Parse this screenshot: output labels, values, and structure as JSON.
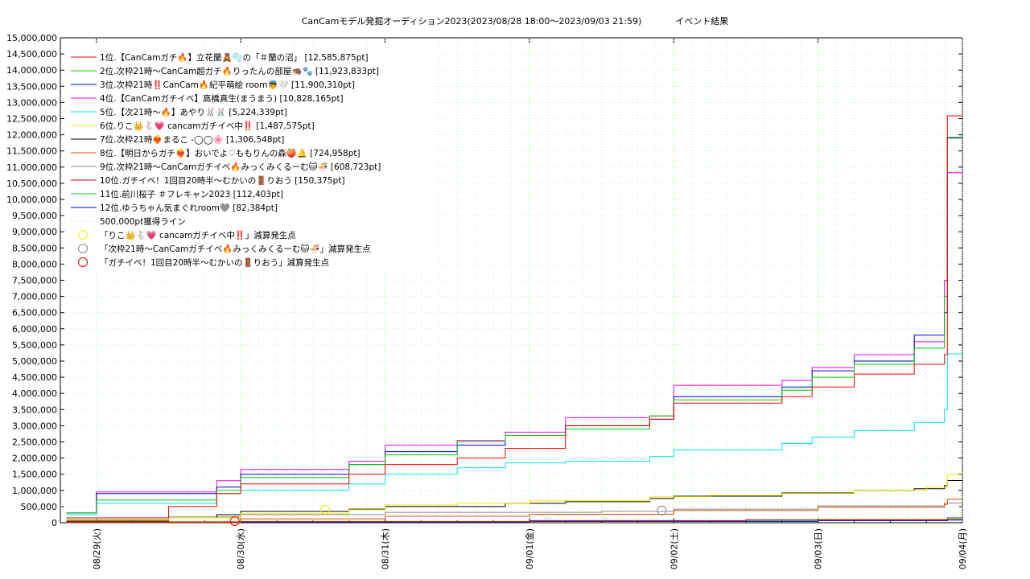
{
  "page_title": "CanCamモデル発掘オーディション2023(2023/08/28 18:00〜2023/09/03 21:59)",
  "page_subtitle": "イベント結果",
  "chart_data": {
    "type": "line",
    "title": "CanCamモデル発掘オーディション2023(2023/08/28 18:00〜2023/09/03 21:59)",
    "subtitle": "イベント結果",
    "xlabel": "",
    "ylabel": "",
    "ylim": [
      0,
      15000000
    ],
    "y_ticks": [
      "0",
      "500,000",
      "1,000,000",
      "1,500,000",
      "2,000,000",
      "2,500,000",
      "3,000,000",
      "3,500,000",
      "4,000,000",
      "4,500,000",
      "5,000,000",
      "5,500,000",
      "6,000,000",
      "6,500,000",
      "7,000,000",
      "7,500,000",
      "8,000,000",
      "8,500,000",
      "9,000,000",
      "9,500,000",
      "10,000,000",
      "10,500,000",
      "11,000,000",
      "11,500,000",
      "12,000,000",
      "12,500,000",
      "13,000,000",
      "13,500,000",
      "14,000,000",
      "14,500,000",
      "15,000,000"
    ],
    "x_range_days": [
      "2023-08-28 18:00",
      "2023-09-04 00:00"
    ],
    "x_ticks": [
      "08/29(火)",
      "08/30(水)",
      "08/31(木)",
      "09/01(金)",
      "09/02(土)",
      "09/03(日)",
      "09/04(月)"
    ],
    "grid": true,
    "legend_position": "top-left",
    "reference_line": {
      "name": "500,000pt獲得ライン",
      "value": 500000,
      "color": "#ffb6b6"
    },
    "series": [
      {
        "name": "1位.【CanCamガチ🔥】立花蘭🧸🫧の「＃蘭の沼」 [12,585,875pt]",
        "color": "#ff0000",
        "points": [
          [
            "08/28 19:00",
            150000
          ],
          [
            "08/29 12:00",
            500000
          ],
          [
            "08/29 20:00",
            900000
          ],
          [
            "08/30 00:00",
            1200000
          ],
          [
            "08/30 18:00",
            1500000
          ],
          [
            "08/31 00:00",
            1800000
          ],
          [
            "08/31 12:00",
            2000000
          ],
          [
            "08/31 20:00",
            2300000
          ],
          [
            "09/01 06:00",
            3000000
          ],
          [
            "09/01 20:00",
            3200000
          ],
          [
            "09/02 00:00",
            3700000
          ],
          [
            "09/02 18:00",
            3900000
          ],
          [
            "09/02 23:00",
            4200000
          ],
          [
            "09/03 06:00",
            4600000
          ],
          [
            "09/03 16:00",
            4900000
          ],
          [
            "09/03 21:00",
            5200000
          ],
          [
            "09/03 21:30",
            12585875
          ],
          [
            "09/04 00:00",
            12585875
          ]
        ]
      },
      {
        "name": "2位.次枠21時〜CanCam超ガチ🔥りったんの部屋🦔🐾 [11,923,833pt]",
        "color": "#00cc00",
        "points": [
          [
            "08/28 19:00",
            300000
          ],
          [
            "08/29 00:00",
            700000
          ],
          [
            "08/29 20:00",
            1000000
          ],
          [
            "08/30 00:00",
            1400000
          ],
          [
            "08/30 18:00",
            1800000
          ],
          [
            "08/31 00:00",
            2100000
          ],
          [
            "08/31 12:00",
            2500000
          ],
          [
            "08/31 20:00",
            2700000
          ],
          [
            "09/01 06:00",
            2900000
          ],
          [
            "09/01 20:00",
            3300000
          ],
          [
            "09/02 00:00",
            3800000
          ],
          [
            "09/02 18:00",
            4100000
          ],
          [
            "09/02 23:00",
            4500000
          ],
          [
            "09/03 06:00",
            4900000
          ],
          [
            "09/03 16:00",
            5400000
          ],
          [
            "09/03 21:00",
            7000000
          ],
          [
            "09/03 21:30",
            11923833
          ],
          [
            "09/04 00:00",
            11923833
          ]
        ]
      },
      {
        "name": "3位.次枠21時‼️CanCam🔥紀平萌絵 room👼🤍 [11,900,310pt]",
        "color": "#0000cc",
        "points": [
          [
            "08/28 19:00",
            300000
          ],
          [
            "08/29 00:00",
            900000
          ],
          [
            "08/29 20:00",
            1100000
          ],
          [
            "08/30 00:00",
            1500000
          ],
          [
            "08/30 18:00",
            1800000
          ],
          [
            "08/31 00:00",
            2200000
          ],
          [
            "08/31 12:00",
            2400000
          ],
          [
            "08/31 20:00",
            2700000
          ],
          [
            "09/01 06:00",
            3000000
          ],
          [
            "09/01 20:00",
            3200000
          ],
          [
            "09/02 00:00",
            3900000
          ],
          [
            "09/02 18:00",
            4200000
          ],
          [
            "09/02 23:00",
            4700000
          ],
          [
            "09/03 06:00",
            5000000
          ],
          [
            "09/03 16:00",
            5800000
          ],
          [
            "09/03 21:00",
            6500000
          ],
          [
            "09/03 21:30",
            11900310
          ],
          [
            "09/04 00:00",
            11900310
          ]
        ]
      },
      {
        "name": "4位.【CanCamガチイベ】高橋真生(まうまう) [10,828,165pt]",
        "color": "#ee00ee",
        "points": [
          [
            "08/28 19:00",
            300000
          ],
          [
            "08/29 00:00",
            950000
          ],
          [
            "08/29 20:00",
            1300000
          ],
          [
            "08/30 00:00",
            1650000
          ],
          [
            "08/30 18:00",
            1900000
          ],
          [
            "08/31 00:00",
            2400000
          ],
          [
            "08/31 12:00",
            2550000
          ],
          [
            "08/31 20:00",
            2800000
          ],
          [
            "09/01 06:00",
            3250000
          ],
          [
            "09/01 20:00",
            3300000
          ],
          [
            "09/02 00:00",
            4250000
          ],
          [
            "09/02 18:00",
            4400000
          ],
          [
            "09/02 23:00",
            4800000
          ],
          [
            "09/03 06:00",
            5200000
          ],
          [
            "09/03 16:00",
            5600000
          ],
          [
            "09/03 21:00",
            7500000
          ],
          [
            "09/03 21:30",
            10828165
          ],
          [
            "09/04 00:00",
            10828165
          ]
        ]
      },
      {
        "name": "5位.【次21時〜🔥】あやり🐰🐰 [5,224,339pt]",
        "color": "#00e5e5",
        "points": [
          [
            "08/28 19:00",
            250000
          ],
          [
            "08/29 00:00",
            600000
          ],
          [
            "08/29 20:00",
            900000
          ],
          [
            "08/30 00:00",
            1000000
          ],
          [
            "08/30 18:00",
            1200000
          ],
          [
            "08/31 00:00",
            1500000
          ],
          [
            "08/31 12:00",
            1700000
          ],
          [
            "08/31 20:00",
            1850000
          ],
          [
            "09/01 06:00",
            1900000
          ],
          [
            "09/01 20:00",
            2050000
          ],
          [
            "09/02 00:00",
            2250000
          ],
          [
            "09/02 18:00",
            2450000
          ],
          [
            "09/02 23:00",
            2650000
          ],
          [
            "09/03 06:00",
            2850000
          ],
          [
            "09/03 16:00",
            3100000
          ],
          [
            "09/03 21:00",
            3500000
          ],
          [
            "09/03 21:30",
            5224339
          ],
          [
            "09/04 00:00",
            5224339
          ]
        ]
      },
      {
        "name": "6位.りこ👑🐇💗 cancamガチイベ中‼️ [1,487,575pt]",
        "color": "#eeee00",
        "points": [
          [
            "08/28 19:00",
            80000
          ],
          [
            "08/29 12:00",
            150000
          ],
          [
            "08/30 00:00",
            280000
          ],
          [
            "08/30 18:00",
            400000
          ],
          [
            "08/31 00:00",
            550000
          ],
          [
            "08/31 12:00",
            600000
          ],
          [
            "09/01 00:00",
            680000
          ],
          [
            "09/01 20:00",
            800000
          ],
          [
            "09/02 06:00",
            850000
          ],
          [
            "09/02 18:00",
            900000
          ],
          [
            "09/03 06:00",
            1000000
          ],
          [
            "09/03 18:00",
            1100000
          ],
          [
            "09/03 21:30",
            1487575
          ],
          [
            "09/04 00:00",
            1487575
          ]
        ]
      },
      {
        "name": "7位.次枠21時❤️‍🔥まるこ -◯◯🌸 [1,306,548pt]",
        "color": "#000000",
        "points": [
          [
            "08/28 19:00",
            50000
          ],
          [
            "08/29 12:00",
            150000
          ],
          [
            "08/29 20:00",
            250000
          ],
          [
            "08/30 00:00",
            350000
          ],
          [
            "08/30 18:00",
            420000
          ],
          [
            "08/31 00:00",
            500000
          ],
          [
            "08/31 20:00",
            600000
          ],
          [
            "09/01 06:00",
            650000
          ],
          [
            "09/01 20:00",
            750000
          ],
          [
            "09/02 00:00",
            820000
          ],
          [
            "09/02 18:00",
            920000
          ],
          [
            "09/03 06:00",
            1000000
          ],
          [
            "09/03 16:00",
            1050000
          ],
          [
            "09/03 21:00",
            1150000
          ],
          [
            "09/03 21:30",
            1306548
          ],
          [
            "09/04 00:00",
            1306548
          ]
        ]
      },
      {
        "name": "8位.【明日からガチ❤️‍🔥】おいでよ♡ももりんの森🍑🔔 [724,958pt]",
        "color": "#e05000",
        "points": [
          [
            "08/28 19:00",
            30000
          ],
          [
            "08/30 00:00",
            120000
          ],
          [
            "08/31 00:00",
            200000
          ],
          [
            "09/01 00:00",
            260000
          ],
          [
            "09/02 00:00",
            380000
          ],
          [
            "09/03 00:00",
            480000
          ],
          [
            "09/03 21:00",
            600000
          ],
          [
            "09/03 21:30",
            724958
          ],
          [
            "09/04 00:00",
            724958
          ]
        ]
      },
      {
        "name": "9位.次枠21時〜CanCamガチイベ🔥みっくみくるーむ🐱🍜 [608,723pt]",
        "color": "#888888",
        "points": [
          [
            "08/28 19:00",
            100000
          ],
          [
            "08/29 12:00",
            180000
          ],
          [
            "08/30 00:00",
            250000
          ],
          [
            "08/31 00:00",
            320000
          ],
          [
            "09/01 12:00",
            350000
          ],
          [
            "09/02 00:00",
            420000
          ],
          [
            "09/03 00:00",
            520000
          ],
          [
            "09/03 21:00",
            560000
          ],
          [
            "09/03 21:30",
            608723
          ],
          [
            "09/04 00:00",
            608723
          ]
        ]
      },
      {
        "name": "10位.ガチイベ！1回目20時半〜むかいの🚪りおう [150,375pt]",
        "color": "#cc0000",
        "points": [
          [
            "08/28 19:00",
            10000
          ],
          [
            "08/30 00:00",
            30000
          ],
          [
            "09/01 00:00",
            60000
          ],
          [
            "09/02 12:00",
            90000
          ],
          [
            "09/03 21:30",
            150375
          ],
          [
            "09/04 00:00",
            150375
          ]
        ]
      },
      {
        "name": "11位.前川桜子 ＃フレキャン2023 [112,403pt]",
        "color": "#22cc22",
        "points": [
          [
            "08/28 19:00",
            10000
          ],
          [
            "08/30 00:00",
            40000
          ],
          [
            "09/01 00:00",
            70000
          ],
          [
            "09/03 00:00",
            100000
          ],
          [
            "09/03 21:30",
            112403
          ],
          [
            "09/04 00:00",
            112403
          ]
        ]
      },
      {
        "name": "12位.ゆうちゃん気まぐれroom🩶 [82,384pt]",
        "color": "#0000ee",
        "points": [
          [
            "08/28 19:00",
            5000
          ],
          [
            "08/30 00:00",
            20000
          ],
          [
            "09/01 00:00",
            40000
          ],
          [
            "09/03 00:00",
            65000
          ],
          [
            "09/03 21:30",
            82384
          ],
          [
            "09/04 00:00",
            82384
          ]
        ]
      }
    ],
    "markers": [
      {
        "name": "「りこ👑🐇💗 cancamガチイベ中‼️」減算発生点",
        "color": "#eeee00",
        "x": "08/30 14:00",
        "y": 400000
      },
      {
        "name": "「次枠21時〜CanCamガチイベ🔥みっくみくるーむ🐱🍜」減算発生点",
        "color": "#888888",
        "x": "09/01 22:00",
        "y": 380000
      },
      {
        "name": "「ガチイベ！1回目20時半〜むかいの🚪りおう」減算発生点",
        "color": "#ee0000",
        "x": "08/29 23:00",
        "y": 50000
      }
    ]
  }
}
